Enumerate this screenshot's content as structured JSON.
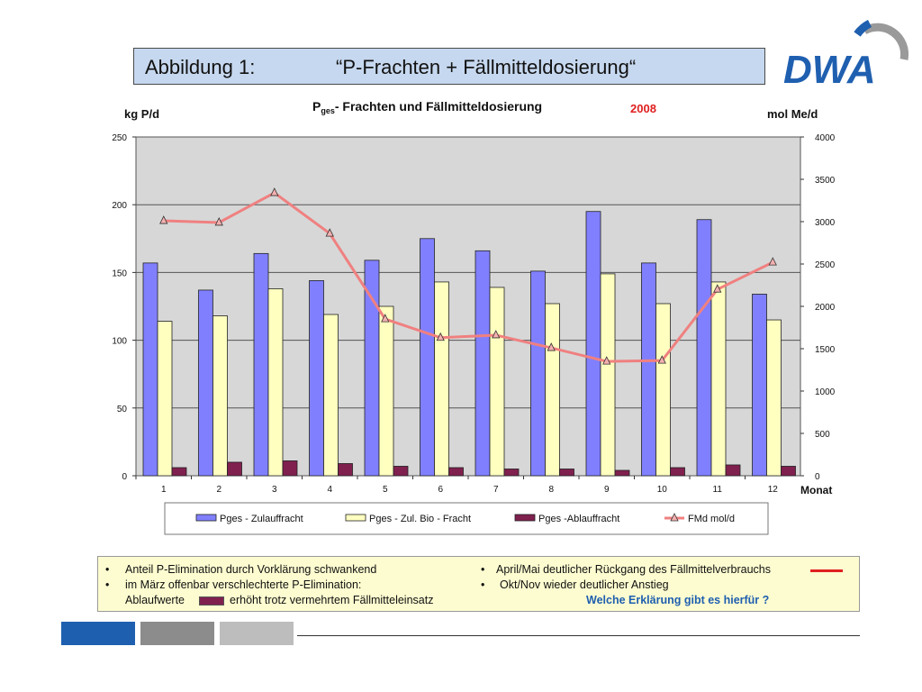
{
  "slide": {
    "title_left": "Abbildung 1:",
    "title_right": "“P-Frachten + Fällmitteldosierung“",
    "logo_text": "DWA"
  },
  "chart_data": {
    "type": "bar",
    "title_main": "P",
    "title_sub": "ges",
    "title_rest": "- Frachten und Fällmitteldosierung",
    "year_label": "2008",
    "ylabel_left": "kg P/d",
    "ylabel_right": "mol Me/d",
    "xlabel": "Monat",
    "categories": [
      "1",
      "2",
      "3",
      "4",
      "5",
      "6",
      "7",
      "8",
      "9",
      "10",
      "11",
      "12"
    ],
    "ylim_left": [
      0,
      250
    ],
    "yticks_left": [
      "0",
      "50",
      "100",
      "150",
      "200",
      "250"
    ],
    "ylim_right": [
      0,
      4000
    ],
    "yticks_right": [
      "0",
      "500",
      "1000",
      "1500",
      "2000",
      "2500",
      "3000",
      "3500",
      "4000"
    ],
    "series": [
      {
        "name": "Pges - Zulauffracht",
        "type": "bar",
        "axis": "left",
        "color": "#8080ff",
        "values": [
          157,
          137,
          164,
          144,
          159,
          175,
          166,
          151,
          195,
          157,
          189,
          134
        ]
      },
      {
        "name": "Pges - Zul. Bio - Fracht",
        "type": "bar",
        "axis": "left",
        "color": "#ffffc0",
        "values": [
          114,
          118,
          138,
          119,
          125,
          143,
          139,
          127,
          149,
          127,
          143,
          115
        ]
      },
      {
        "name": "Pges -Ablauffracht",
        "type": "bar",
        "axis": "left",
        "color": "#80204f",
        "values": [
          6,
          10,
          11,
          9,
          7,
          6,
          5,
          5,
          4,
          6,
          8,
          7
        ]
      },
      {
        "name": "FMd mol/d",
        "type": "line",
        "axis": "right",
        "color": "#f08080",
        "values": [
          3010,
          2990,
          3340,
          2860,
          1850,
          1630,
          1660,
          1510,
          1350,
          1360,
          2200,
          2520
        ]
      }
    ],
    "grid": "horizontal",
    "legend_position": "bottom"
  },
  "notes": {
    "left": [
      {
        "bullet": "•",
        "text": "Anteil P-Elimination durch Vorklärung schwankend"
      },
      {
        "bullet": "•",
        "text": "im März offenbar verschlechterte P-Elimination:"
      },
      {
        "bullet": "",
        "text_a": "Ablaufwerte",
        "text_b": "erhöht trotz vermehrtem Fällmitteleinsatz"
      }
    ],
    "right": [
      {
        "bullet": "•",
        "text": "April/Mai deutlicher Rückgang des Fällmittelverbrauchs"
      },
      {
        "bullet": "•",
        "text": "Okt/Nov wieder deutlicher Anstieg"
      }
    ],
    "question": "Welche Erklärung gibt es hierfür ?",
    "colors": {
      "question": "#1f5fb0",
      "red_mark": "#e02020",
      "purple_mark": "#80204f"
    }
  },
  "footer_bars": {
    "colors": [
      "#1f5fb0",
      "#8c8c8c",
      "#bdbdbd"
    ]
  }
}
